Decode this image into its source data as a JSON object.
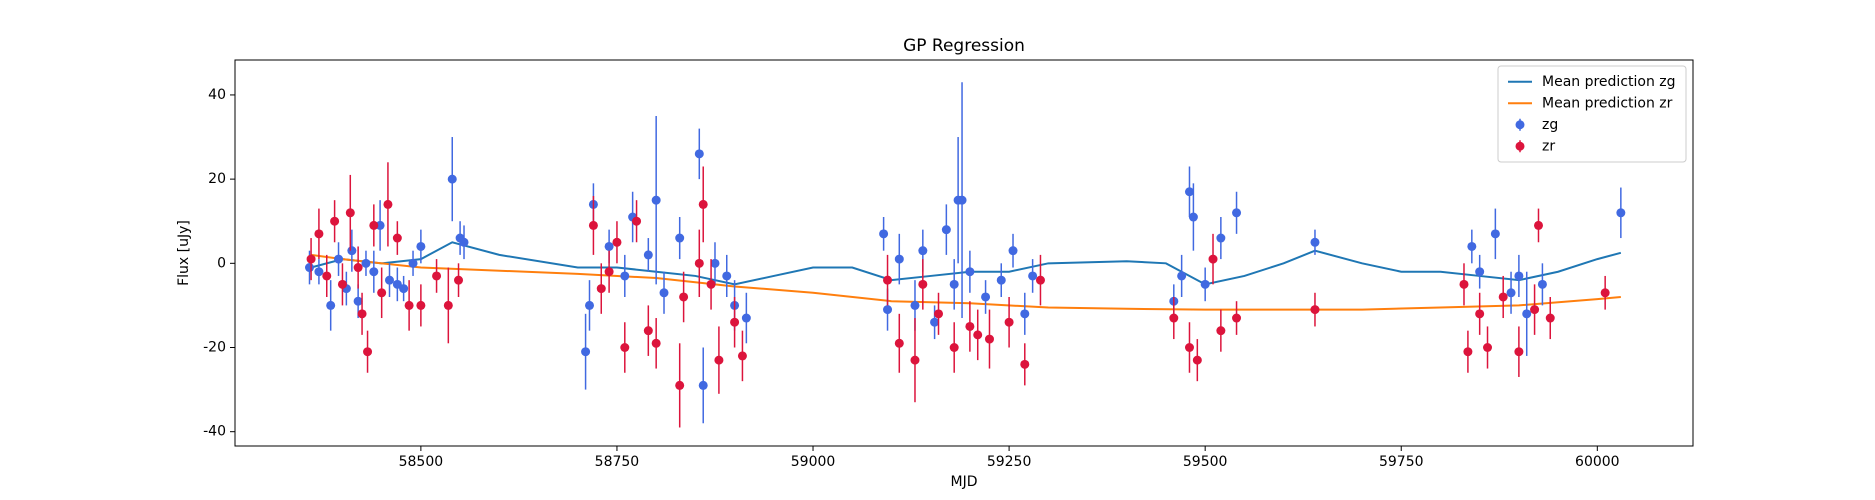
{
  "chart_data": {
    "type": "errorbar",
    "title": "GP Regression",
    "x_label": "MJD",
    "y_label": "Flux [uJy]",
    "xlim": [
      58263,
      60122
    ],
    "ylim": [
      -43.4,
      48.3
    ],
    "xticks": [
      58500,
      58750,
      59000,
      59250,
      59500,
      59750,
      60000
    ],
    "yticks": [
      -40,
      -20,
      0,
      20,
      40
    ],
    "legend": "upper right",
    "series": [
      {
        "name": "Mean prediction zg",
        "type": "line",
        "color": "#1f77b4",
        "x": [
          58360,
          58400,
          58450,
          58500,
          58540,
          58600,
          58700,
          58750,
          58800,
          58850,
          58900,
          58950,
          59000,
          59050,
          59100,
          59150,
          59200,
          59250,
          59300,
          59400,
          59450,
          59500,
          59550,
          59600,
          59640,
          59700,
          59750,
          59800,
          59850,
          59900,
          59950,
          60000,
          60030
        ],
        "values": [
          -1,
          1,
          0,
          1,
          5,
          2,
          -1,
          -1,
          -2,
          -3,
          -5,
          -3,
          -1,
          -1,
          -4,
          -3,
          -2,
          -2,
          0,
          0.5,
          0,
          -5,
          -3,
          0,
          3,
          0,
          -2,
          -2,
          -3,
          -4,
          -2,
          1,
          2.5
        ]
      },
      {
        "name": "Mean prediction zr",
        "type": "line",
        "color": "#ff7f0e",
        "x": [
          58360,
          58400,
          58500,
          58700,
          58800,
          58900,
          59000,
          59100,
          59200,
          59300,
          59400,
          59500,
          59600,
          59700,
          59800,
          59900,
          60000,
          60030
        ],
        "values": [
          2,
          1,
          -1,
          -2.5,
          -3.5,
          -5.5,
          -7,
          -9,
          -9.5,
          -10.5,
          -10.8,
          -11,
          -11,
          -11,
          -10.5,
          -10,
          -8.5,
          -8
        ]
      },
      {
        "name": "zg",
        "type": "errorbar",
        "color": "#4169e1",
        "x": [
          58358,
          58370,
          58385,
          58395,
          58405,
          58412,
          58420,
          58430,
          58440,
          58448,
          58460,
          58470,
          58478,
          58490,
          58500,
          58540,
          58550,
          58555,
          58710,
          58715,
          58720,
          58740,
          58760,
          58770,
          58790,
          58800,
          58810,
          58830,
          58855,
          58860,
          58875,
          58890,
          58900,
          58915,
          59090,
          59095,
          59110,
          59130,
          59140,
          59155,
          59170,
          59180,
          59185,
          59190,
          59200,
          59220,
          59240,
          59255,
          59270,
          59280,
          59460,
          59470,
          59480,
          59485,
          59500,
          59520,
          59540,
          59640,
          59840,
          59850,
          59870,
          59890,
          59900,
          59910,
          59930,
          60030
        ],
        "values": [
          -1,
          -2,
          -10,
          1,
          -6,
          3,
          -9,
          0,
          -2,
          9,
          -4,
          -5,
          -6,
          0,
          4,
          20,
          6,
          5,
          -21,
          -10,
          14,
          4,
          -3,
          11,
          2,
          15,
          -7,
          6,
          26,
          -29,
          0,
          -3,
          -10,
          -13,
          7,
          -11,
          1,
          -10,
          3,
          -14,
          8,
          -5,
          15,
          15,
          -2,
          -8,
          -4,
          3,
          -12,
          -3,
          -9,
          -3,
          17,
          11,
          -5,
          6,
          12,
          5,
          4,
          -2,
          7,
          -7,
          -3,
          -12,
          -5,
          12
        ],
        "errors": [
          4,
          3,
          6,
          4,
          4,
          5,
          4,
          3,
          5,
          6,
          4,
          4,
          3,
          3,
          4,
          10,
          4,
          4,
          9,
          6,
          5,
          4,
          5,
          6,
          4,
          20,
          5,
          5,
          6,
          9,
          5,
          5,
          6,
          6,
          4,
          5,
          6,
          6,
          5,
          4,
          6,
          6,
          15,
          28,
          5,
          4,
          4,
          4,
          5,
          4,
          4,
          5,
          6,
          8,
          4,
          5,
          5,
          3,
          4,
          4,
          6,
          5,
          5,
          10,
          5,
          6
        ]
      },
      {
        "name": "zr",
        "type": "errorbar",
        "color": "#dc143c",
        "x": [
          58360,
          58370,
          58380,
          58390,
          58400,
          58410,
          58420,
          58425,
          58432,
          58440,
          58450,
          58458,
          58470,
          58485,
          58500,
          58520,
          58535,
          58548,
          58720,
          58730,
          58740,
          58750,
          58760,
          58775,
          58790,
          58800,
          58830,
          58835,
          58855,
          58860,
          58870,
          58880,
          58900,
          58910,
          59095,
          59110,
          59130,
          59140,
          59160,
          59180,
          59200,
          59210,
          59225,
          59250,
          59270,
          59290,
          59460,
          59480,
          59490,
          59510,
          59520,
          59540,
          59640,
          59830,
          59835,
          59850,
          59860,
          59880,
          59900,
          59920,
          59925,
          59940,
          60010
        ],
        "values": [
          1,
          7,
          -3,
          10,
          -5,
          12,
          -1,
          -12,
          -21,
          9,
          -7,
          14,
          6,
          -10,
          -10,
          -3,
          -10,
          -4,
          9,
          -6,
          -2,
          5,
          -20,
          10,
          -16,
          -19,
          -29,
          -8,
          0,
          14,
          -5,
          -23,
          -14,
          -22,
          -4,
          -19,
          -23,
          -5,
          -12,
          -20,
          -15,
          -17,
          -18,
          -14,
          -24,
          -4,
          -13,
          -20,
          -23,
          1,
          -16,
          -13,
          -11,
          -5,
          -21,
          -12,
          -20,
          -8,
          -21,
          -11,
          9,
          -13,
          -7
        ],
        "errors": [
          5,
          6,
          5,
          5,
          5,
          9,
          5,
          5,
          5,
          5,
          6,
          10,
          4,
          6,
          5,
          4,
          9,
          4,
          7,
          6,
          5,
          5,
          6,
          5,
          6,
          6,
          10,
          6,
          8,
          9,
          6,
          8,
          6,
          6,
          6,
          7,
          10,
          6,
          5,
          6,
          6,
          6,
          7,
          6,
          5,
          6,
          5,
          6,
          5,
          6,
          5,
          4,
          4,
          5,
          5,
          5,
          5,
          5,
          6,
          6,
          4,
          5,
          4
        ]
      }
    ]
  }
}
